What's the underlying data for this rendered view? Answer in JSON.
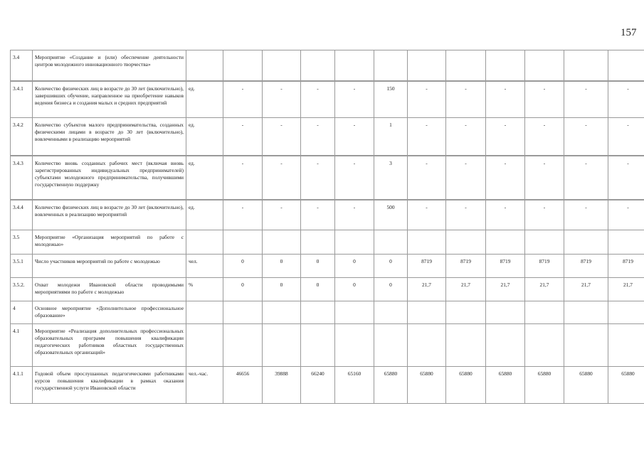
{
  "page_number": "157",
  "rows": [
    {
      "code": "3.4",
      "name": "Мероприятие «Создание и (или) обеспечение деятельности центров молодежного инновационного творчества»",
      "unit": "",
      "values": [
        "",
        "",
        "",
        "",
        "",
        "",
        "",
        "",
        "",
        "",
        ""
      ]
    },
    {
      "code": "3.4.1",
      "name": "Количество физических лиц в возрасте до 30 лет (включительно), завершивших обучение, направленное на приобретение навыков ведения бизнеса и создания малых и средних предприятий",
      "unit": "ед.",
      "values": [
        "-",
        "-",
        "-",
        "-",
        "150",
        "-",
        "-",
        "-",
        "-",
        "-",
        "-"
      ]
    },
    {
      "code": "3.4.2",
      "name": "Количество субъектов малого предпринимательства, созданных физическими лицами в возрасте до 30 лет (включительно), вовлеченными в реализацию мероприятий",
      "unit": "ед.",
      "values": [
        "-",
        "-",
        "-",
        "-",
        "1",
        "-",
        "-",
        "-",
        "-",
        "-",
        "-"
      ]
    },
    {
      "code": "3.4.3",
      "name": "Количество вновь созданных рабочих мест (включая вновь зарегистрированных индивидуальных предпринимателей) субъектами молодежного предпринимательства, получившими государственную поддержку",
      "unit": "ед.",
      "values": [
        "-",
        "-",
        "-",
        "-",
        "3",
        "-",
        "-",
        "-",
        "-",
        "-",
        "-"
      ]
    },
    {
      "code": "3.4.4",
      "name": "Количество физических лиц в возрасте до 30 лет (включительно), вовлеченных в реализацию мероприятий",
      "unit": "ед.",
      "values": [
        "-",
        "-",
        "-",
        "-",
        "500",
        "-",
        "-",
        "-",
        "-",
        "-",
        "-"
      ]
    },
    {
      "code": "3.5",
      "name": "Мероприятие «Организация мероприятий по работе с молодежью»",
      "unit": "",
      "values": [
        "",
        "",
        "",
        "",
        "",
        "",
        "",
        "",
        "",
        "",
        ""
      ]
    },
    {
      "code": "3.5.1",
      "name": "Число участников мероприятий по работе с молодежью",
      "unit": "чел.",
      "values": [
        "0",
        "0",
        "0",
        "0",
        "0",
        "8719",
        "8719",
        "8719",
        "8719",
        "8719",
        "8719"
      ]
    },
    {
      "code": "3.5.2.",
      "name": "Охват молодежи Ивановской области проводимыми мероприятиями по работе с молодежью",
      "unit": "%",
      "values": [
        "0",
        "0",
        "0",
        "0",
        "0",
        "21,7",
        "21,7",
        "21,7",
        "21,7",
        "21,7",
        "21,7"
      ]
    },
    {
      "code": "4",
      "name": "Основное мероприятие «Дополнительное профессиональное образование»",
      "unit": "",
      "values": [
        "",
        "",
        "",
        "",
        "",
        "",
        "",
        "",
        "",
        "",
        ""
      ]
    },
    {
      "code": "4.1",
      "name": "Мероприятие «Реализация дополнительных профессиональных образовательных программ повышения квалификации педагогических работников областных государственных образовательных организаций»",
      "unit": "",
      "values": [
        "",
        "",
        "",
        "",
        "",
        "",
        "",
        "",
        "",
        "",
        ""
      ]
    },
    {
      "code": "4.1.1",
      "name": "Годовой объем прослушанных педагогическими работниками курсов повышения квалификации в рамках оказания государственной услуги Ивановской области",
      "unit": "чел.-час.",
      "values": [
        "46656",
        "39888",
        "66240",
        "65160",
        "65880",
        "65880",
        "65880",
        "65880",
        "65880",
        "65880",
        "65880"
      ]
    }
  ]
}
